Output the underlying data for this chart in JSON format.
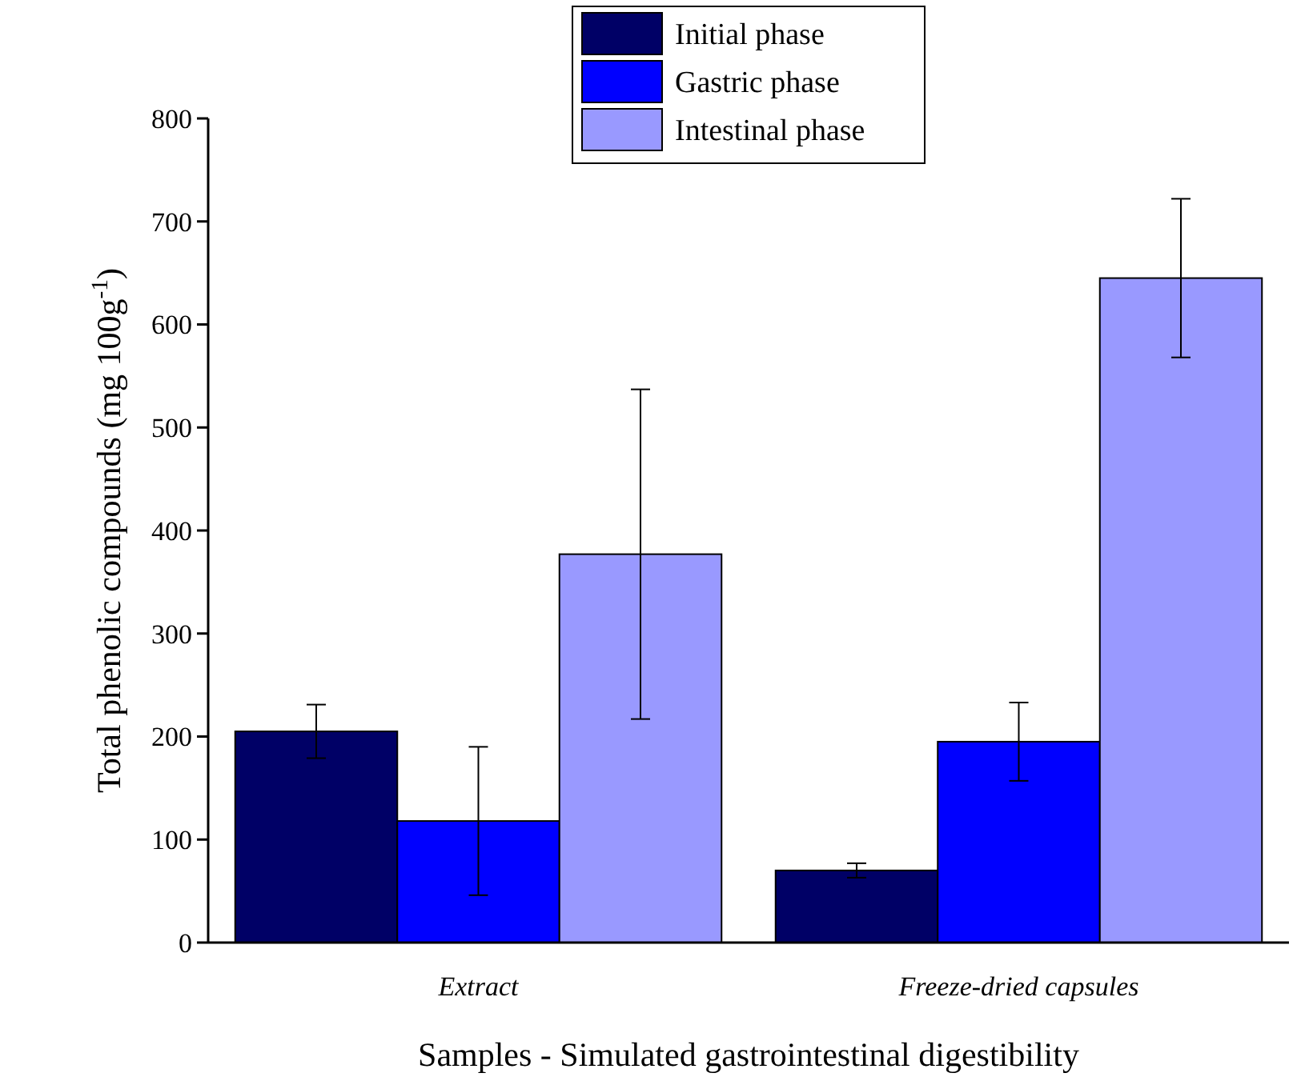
{
  "chart_data": {
    "type": "bar",
    "xlabel": "Samples - Simulated gastrointestinal digestibility",
    "ylabel": "Total phenolic compounds (mg 100g$^{-1}$)",
    "categories": [
      "Extract",
      "Freeze-dried capsules"
    ],
    "series": [
      {
        "name": "Initial phase",
        "color": "#000066",
        "values": [
          205,
          70
        ],
        "errors": [
          26,
          7
        ]
      },
      {
        "name": "Gastric phase",
        "color": "#0000ff",
        "values": [
          118,
          195
        ],
        "errors": [
          72,
          38
        ]
      },
      {
        "name": "Intestinal phase",
        "color": "#9999ff",
        "values": [
          377,
          645
        ],
        "errors": [
          160,
          77
        ]
      }
    ],
    "ylim": [
      0,
      800
    ],
    "yticks": [
      0,
      100,
      200,
      300,
      400,
      500,
      600,
      700,
      800
    ],
    "grid": false,
    "legend": "top"
  }
}
